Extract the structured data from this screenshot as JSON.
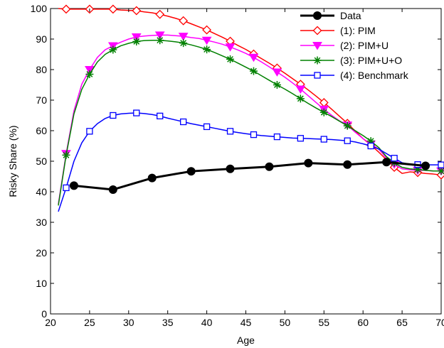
{
  "chart_data": {
    "type": "line",
    "title": "",
    "xlabel": "Age",
    "ylabel": "Risky Share (%)",
    "xlim": [
      20,
      70
    ],
    "ylim": [
      0,
      100
    ],
    "xticks": [
      20,
      25,
      30,
      35,
      40,
      45,
      50,
      55,
      60,
      65,
      70
    ],
    "yticks": [
      0,
      10,
      20,
      30,
      40,
      50,
      60,
      70,
      80,
      90,
      100
    ],
    "grid": false,
    "legend_position": "top-right",
    "series": [
      {
        "name": "Data",
        "color": "#000000",
        "marker": "filled-circle",
        "x": [
          23,
          28,
          33,
          38,
          43,
          48,
          53,
          58,
          63,
          68
        ],
        "y": [
          42.0,
          40.7,
          44.5,
          46.7,
          47.5,
          48.2,
          49.4,
          48.9,
          49.7,
          48.5
        ]
      },
      {
        "name": "(1): PIM",
        "color": "#ff0000",
        "marker": "diamond",
        "x": [
          21,
          22,
          23,
          24,
          25,
          26,
          27,
          28,
          29,
          30,
          31,
          32,
          33,
          34,
          35,
          36,
          37,
          38,
          39,
          40,
          41,
          42,
          43,
          44,
          45,
          46,
          47,
          48,
          49,
          50,
          51,
          52,
          53,
          54,
          55,
          56,
          57,
          58,
          59,
          60,
          61,
          62,
          63,
          64,
          65,
          66,
          67,
          68,
          69,
          70
        ],
        "y": [
          100,
          99.8,
          99.8,
          99.8,
          99.8,
          99.8,
          99.8,
          99.8,
          99.5,
          99.4,
          99.3,
          98.9,
          98.6,
          98.1,
          97.5,
          96.8,
          96.0,
          95.0,
          94.0,
          93.0,
          91.8,
          90.6,
          89.3,
          87.9,
          86.6,
          85.1,
          83.6,
          82.1,
          80.5,
          78.8,
          77.0,
          75.2,
          73.3,
          71.3,
          69.2,
          67.0,
          64.7,
          62.4,
          59.9,
          57.4,
          55.3,
          53.0,
          50.5,
          48.0,
          46.0,
          46.5,
          46.3,
          46.0,
          45.8,
          45.5
        ]
      },
      {
        "name": "(2): PIM+U",
        "color": "#ff00ff",
        "marker": "triangle-down",
        "x": [
          21,
          22,
          23,
          24,
          25,
          26,
          27,
          28,
          29,
          30,
          31,
          32,
          33,
          34,
          35,
          36,
          37,
          38,
          39,
          40,
          41,
          42,
          43,
          44,
          45,
          46,
          47,
          48,
          49,
          50,
          51,
          52,
          53,
          54,
          55,
          56,
          57,
          58,
          59,
          60,
          61,
          62,
          63,
          64,
          65,
          66,
          67,
          68,
          69,
          70
        ],
        "y": [
          36,
          52.5,
          66.5,
          75.2,
          80.0,
          84.0,
          86.5,
          87.8,
          89.0,
          90.0,
          90.7,
          91.0,
          91.2,
          91.3,
          91.3,
          91.1,
          90.9,
          90.5,
          90.2,
          89.6,
          89.0,
          88.3,
          87.4,
          86.4,
          85.3,
          84.0,
          82.5,
          80.9,
          79.2,
          77.5,
          75.6,
          73.6,
          71.4,
          69.2,
          67.0,
          65.0,
          63.2,
          61.8,
          59.5,
          57.4,
          55.6,
          54.0,
          51.0,
          49.0,
          47.5,
          47.2,
          47.0,
          47.0,
          46.8,
          46.8
        ]
      },
      {
        "name": "(3): PIM+U+O",
        "color": "#008000",
        "marker": "asterisk",
        "x": [
          21,
          22,
          23,
          24,
          25,
          26,
          27,
          28,
          29,
          30,
          31,
          32,
          33,
          34,
          35,
          36,
          37,
          38,
          39,
          40,
          41,
          42,
          43,
          44,
          45,
          46,
          47,
          48,
          49,
          50,
          51,
          52,
          53,
          54,
          55,
          56,
          57,
          58,
          59,
          60,
          61,
          62,
          63,
          64,
          65,
          66,
          67,
          68,
          69,
          70
        ],
        "y": [
          35.5,
          52.0,
          65.5,
          73.5,
          78.5,
          82.5,
          85.0,
          86.5,
          87.8,
          88.6,
          89.2,
          89.5,
          89.6,
          89.6,
          89.4,
          89.1,
          88.7,
          88.1,
          87.4,
          86.6,
          85.6,
          84.5,
          83.4,
          82.1,
          80.8,
          79.5,
          78.0,
          76.5,
          75.0,
          73.6,
          72.1,
          70.5,
          68.9,
          67.4,
          66.0,
          64.6,
          63.1,
          61.6,
          60.0,
          58.4,
          56.6,
          54.5,
          51.5,
          49.5,
          48.0,
          47.5,
          47.3,
          47.0,
          46.8,
          46.8
        ]
      },
      {
        "name": "(4): Benchmark",
        "color": "#0000ff",
        "marker": "square",
        "x": [
          21,
          22,
          23,
          24,
          25,
          26,
          27,
          28,
          29,
          30,
          31,
          32,
          33,
          34,
          35,
          36,
          37,
          38,
          39,
          40,
          41,
          42,
          43,
          44,
          45,
          46,
          47,
          48,
          49,
          50,
          51,
          52,
          53,
          54,
          55,
          56,
          57,
          58,
          59,
          60,
          61,
          62,
          63,
          64,
          65,
          66,
          67,
          68,
          69,
          70
        ],
        "y": [
          33.5,
          41.3,
          50.0,
          56.0,
          59.8,
          62.3,
          64.0,
          65.0,
          65.5,
          65.7,
          65.8,
          65.6,
          65.3,
          64.8,
          64.1,
          63.5,
          62.9,
          62.3,
          61.8,
          61.3,
          60.8,
          60.3,
          59.8,
          59.4,
          59.0,
          58.7,
          58.4,
          58.2,
          58.0,
          57.8,
          57.6,
          57.5,
          57.4,
          57.3,
          57.2,
          57.1,
          56.9,
          56.7,
          56.3,
          55.7,
          55.0,
          54.0,
          52.5,
          51.0,
          49.5,
          49.0,
          48.9,
          48.8,
          48.8,
          48.8
        ]
      }
    ]
  }
}
